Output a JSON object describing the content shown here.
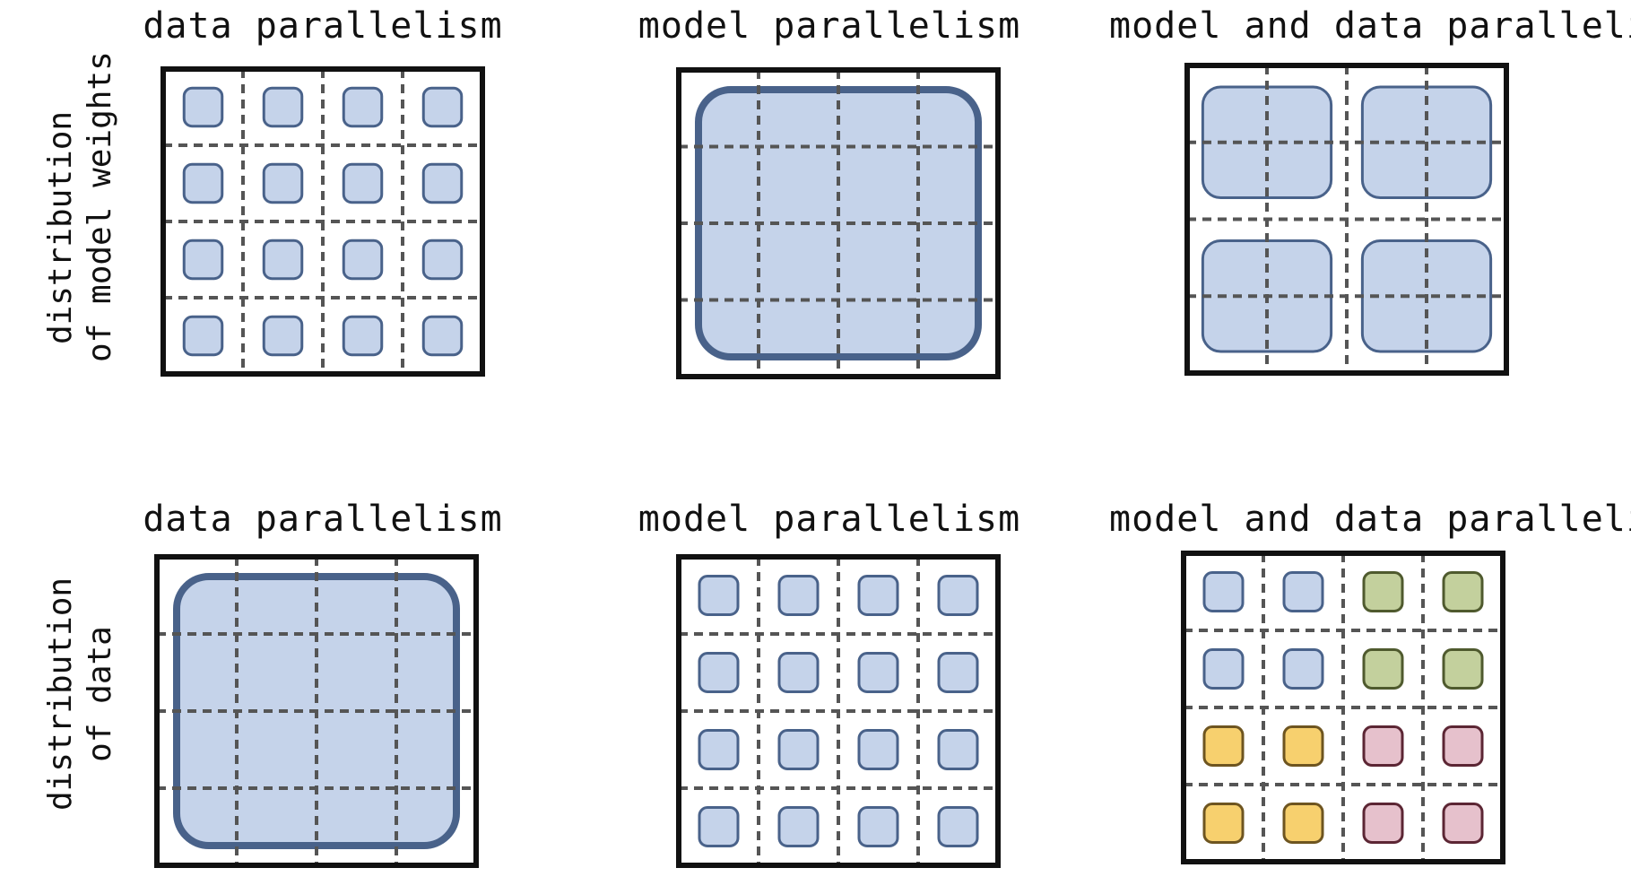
{
  "row_labels": [
    {
      "line1": "distribution",
      "line2": "of model weights"
    },
    {
      "line1": "distribution",
      "line2": "of data"
    }
  ],
  "panels": [
    {
      "title": "data parallelism",
      "pattern": "tiles",
      "tile_colors": [
        "blue",
        "blue",
        "blue",
        "blue",
        "blue",
        "blue",
        "blue",
        "blue",
        "blue",
        "blue",
        "blue",
        "blue",
        "blue",
        "blue",
        "blue",
        "blue"
      ]
    },
    {
      "title": "model parallelism",
      "pattern": "full"
    },
    {
      "title": "model and data parallelism",
      "pattern": "quads"
    },
    {
      "title": "data parallelism",
      "pattern": "full"
    },
    {
      "title": "model parallelism",
      "pattern": "tiles",
      "tile_colors": [
        "blue",
        "blue",
        "blue",
        "blue",
        "blue",
        "blue",
        "blue",
        "blue",
        "blue",
        "blue",
        "blue",
        "blue",
        "blue",
        "blue",
        "blue",
        "blue"
      ]
    },
    {
      "title": "model and data parallelism",
      "pattern": "tiles",
      "tile_colors": [
        "blue",
        "blue",
        "green",
        "green",
        "blue",
        "blue",
        "green",
        "green",
        "yellow",
        "yellow",
        "pink",
        "pink",
        "yellow",
        "yellow",
        "pink",
        "pink"
      ]
    }
  ],
  "colors": {
    "blue_fill": "#c5d3ea",
    "blue_stroke": "#49628a",
    "green_fill": "#c3d09d",
    "green_stroke": "#4f5a2e",
    "yellow_fill": "#f7d06e",
    "yellow_stroke": "#6e5520",
    "pink_fill": "#e6c1cc",
    "pink_stroke": "#5c2634",
    "frame": "#111111",
    "grid": "#555555"
  }
}
